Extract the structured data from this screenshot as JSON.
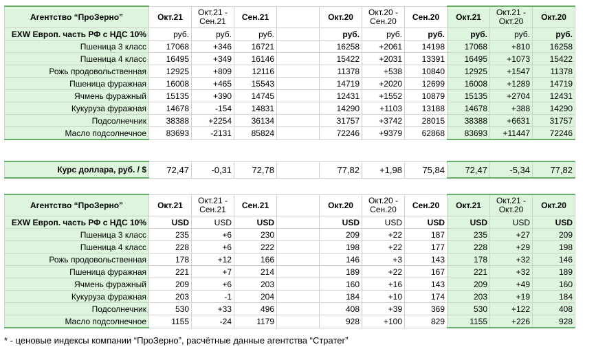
{
  "rub": {
    "title": "Агентство “ПроЗерно”",
    "headers": [
      "Окт.21",
      "Окт.21 -\nСен.21",
      "Сен.21",
      "",
      "Окт.20",
      "Окт.20 -\nСен.20",
      "Сен.20",
      "Окт.21",
      "Окт.21 -\nОкт.20",
      "Окт.20"
    ],
    "subtitle": "EXW Европ. часть РФ с НДС 10%",
    "units": [
      "руб.",
      "руб.",
      "руб.",
      "",
      "руб.",
      "руб.",
      "руб.",
      "руб.",
      "руб.",
      "руб."
    ],
    "rows": [
      {
        "label": "Пшеница 3 класс",
        "v": [
          "17068",
          "+346",
          "16721",
          "",
          "16258",
          "+2061",
          "14198",
          "17068",
          "+810",
          "16258"
        ]
      },
      {
        "label": "Пшеница 4 класс",
        "v": [
          "16495",
          "+349",
          "16146",
          "",
          "15422",
          "+2031",
          "13391",
          "16495",
          "+1073",
          "15422"
        ]
      },
      {
        "label": "Рожь продовольственная",
        "v": [
          "12925",
          "+809",
          "12116",
          "",
          "11378",
          "+538",
          "10840",
          "12925",
          "+1547",
          "11378"
        ]
      },
      {
        "label": "Пшеница фуражная",
        "v": [
          "16008",
          "+465",
          "15543",
          "",
          "14719",
          "+2020",
          "12699",
          "16008",
          "+1289",
          "14719"
        ]
      },
      {
        "label": "Ячмень фуражный",
        "v": [
          "15135",
          "+390",
          "14745",
          "",
          "12431",
          "+1552",
          "10879",
          "15135",
          "+2704",
          "12431"
        ]
      },
      {
        "label": "Кукуруза фуражная",
        "v": [
          "14678",
          "-154",
          "14831",
          "",
          "14290",
          "+1103",
          "13188",
          "14678",
          "+388",
          "14290"
        ]
      },
      {
        "label": "Подсолнечник",
        "v": [
          "38388",
          "+2254",
          "36134",
          "",
          "31757",
          "+3742",
          "28015",
          "38388",
          "+6631",
          "31757"
        ]
      },
      {
        "label": "Масло подсолнечное",
        "v": [
          "83693",
          "-2131",
          "85824",
          "",
          "72246",
          "+9379",
          "62868",
          "83693",
          "+11447",
          "72246"
        ]
      }
    ]
  },
  "rate": {
    "label": "Курс доллара, руб. / $",
    "v": [
      "72,47",
      "-0,31",
      "72,78",
      "",
      "77,82",
      "+1,98",
      "75,84",
      "72,47",
      "-5,34",
      "77,82"
    ]
  },
  "usd": {
    "title": "Агентство “ПроЗерно”",
    "headers": [
      "Окт.21",
      "Окт.21 -\nСен.21",
      "Сен.21",
      "",
      "Окт.20",
      "Окт.20 -\nСен.20",
      "Сен.20",
      "Окт.21",
      "Окт.21 -\nОкт.20",
      "Окт.20"
    ],
    "subtitle": "EXW Европ. часть РФ с НДС 10%",
    "units": [
      "USD",
      "USD",
      "USD",
      "",
      "USD",
      "USD",
      "USD",
      "USD",
      "USD",
      "USD"
    ],
    "rows": [
      {
        "label": "Пшеница 3 класс",
        "v": [
          "235",
          "+6",
          "230",
          "",
          "209",
          "+22",
          "187",
          "235",
          "+27",
          "209"
        ]
      },
      {
        "label": "Пшеница 4 класс",
        "v": [
          "228",
          "+6",
          "222",
          "",
          "198",
          "+22",
          "177",
          "228",
          "+29",
          "198"
        ]
      },
      {
        "label": "Рожь продовольственная",
        "v": [
          "178",
          "+12",
          "166",
          "",
          "146",
          "+3",
          "143",
          "178",
          "+32",
          "146"
        ]
      },
      {
        "label": "Пшеница фуражная",
        "v": [
          "221",
          "+7",
          "214",
          "",
          "189",
          "+22",
          "167",
          "221",
          "+32",
          "189"
        ]
      },
      {
        "label": "Ячмень фуражный",
        "v": [
          "209",
          "+6",
          "203",
          "",
          "160",
          "+16",
          "143",
          "209",
          "+49",
          "160"
        ]
      },
      {
        "label": "Кукуруза фуражная",
        "v": [
          "203",
          "-1",
          "204",
          "",
          "184",
          "+10",
          "174",
          "203",
          "+19",
          "184"
        ]
      },
      {
        "label": "Подсолнечник",
        "v": [
          "530",
          "+33",
          "496",
          "",
          "408",
          "+39",
          "369",
          "530",
          "+122",
          "408"
        ]
      },
      {
        "label": "Масло подсолнечное",
        "v": [
          "1155",
          "-24",
          "1179",
          "",
          "928",
          "+100",
          "829",
          "1155",
          "+226",
          "928"
        ]
      }
    ]
  },
  "footnote": "* - ценовые индексы компании “ПроЗерно”, расчётные данные агентства “Стратег”",
  "colors": {
    "positive": "#1f8a1f",
    "negative": "#e02020",
    "highlight": "#dcf5dc",
    "frame": "#6aaa6a"
  }
}
